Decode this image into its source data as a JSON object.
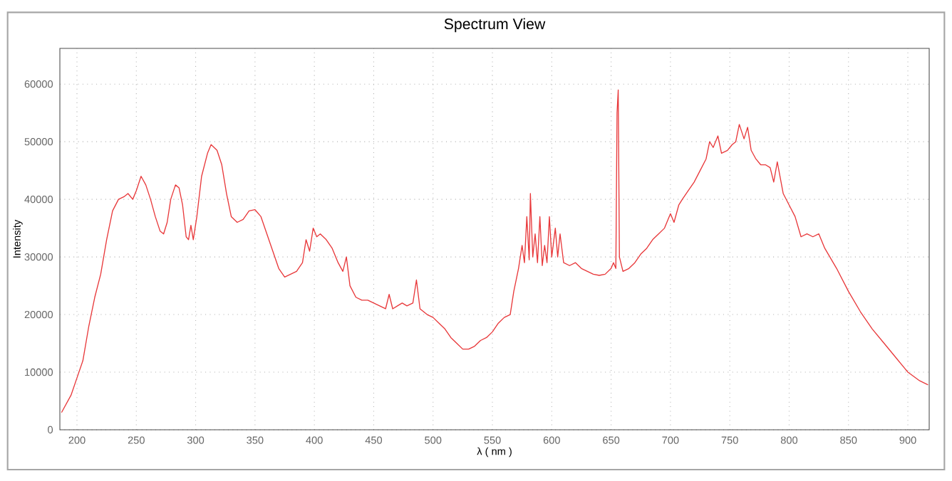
{
  "chart_data": {
    "type": "line",
    "title": "Spectrum View",
    "xlabel": "λ ( nm )",
    "ylabel": "Intensity",
    "xlim": [
      185.6,
      918
    ],
    "ylim": [
      0,
      66200
    ],
    "xticks": [
      200,
      250,
      300,
      350,
      400,
      450,
      500,
      550,
      600,
      650,
      700,
      750,
      800,
      850,
      900
    ],
    "yticks": [
      0,
      10000,
      20000,
      30000,
      40000,
      50000,
      60000
    ],
    "grid": true,
    "marker": "none",
    "line_style": "solid",
    "series": [
      {
        "color": "#e8383a",
        "x": [
          187,
          195,
          200,
          205,
          210,
          215,
          220,
          225,
          230,
          235,
          240,
          243,
          247,
          250,
          254,
          258,
          262,
          266,
          270,
          273,
          276,
          279,
          283,
          286,
          289,
          292,
          294,
          296,
          298,
          301,
          305,
          310,
          313,
          318,
          322,
          326,
          330,
          335,
          340,
          345,
          350,
          355,
          360,
          365,
          370,
          375,
          380,
          385,
          390,
          393,
          396,
          399,
          402,
          405,
          410,
          415,
          420,
          424,
          427,
          430,
          435,
          440,
          445,
          450,
          455,
          460,
          463,
          466,
          470,
          474,
          478,
          483,
          486,
          489,
          495,
          500,
          505,
          510,
          515,
          520,
          525,
          530,
          535,
          540,
          545,
          550,
          555,
          560,
          565,
          568,
          572,
          575,
          577,
          579,
          581,
          582,
          584,
          586,
          588,
          590,
          592,
          594,
          596,
          598,
          600,
          603,
          605,
          607,
          610,
          615,
          620,
          625,
          630,
          635,
          640,
          645,
          650,
          652,
          654,
          655,
          656,
          657,
          660,
          665,
          670,
          675,
          680,
          685,
          690,
          695,
          700,
          703,
          707,
          710,
          715,
          720,
          725,
          730,
          733,
          736,
          740,
          743,
          748,
          752,
          755,
          758,
          762,
          765,
          768,
          772,
          776,
          780,
          784,
          787,
          790,
          795,
          800,
          805,
          810,
          815,
          820,
          825,
          830,
          840,
          850,
          860,
          870,
          880,
          890,
          900,
          910,
          917
        ],
        "values": [
          3000,
          6000,
          9000,
          12000,
          18000,
          23000,
          27000,
          33000,
          38000,
          40000,
          40500,
          41000,
          40000,
          41500,
          44000,
          42500,
          40000,
          37000,
          34500,
          34000,
          36000,
          40000,
          42500,
          42000,
          39000,
          33500,
          33000,
          35500,
          33000,
          37000,
          44000,
          48000,
          49500,
          48500,
          46000,
          41000,
          37000,
          36000,
          36500,
          38000,
          38200,
          37000,
          34000,
          31000,
          28000,
          26500,
          27000,
          27500,
          29000,
          33000,
          31000,
          35000,
          33500,
          34000,
          33000,
          31500,
          29000,
          27500,
          30000,
          25000,
          23000,
          22500,
          22500,
          22000,
          21500,
          21000,
          23500,
          21000,
          21500,
          22000,
          21500,
          22000,
          26000,
          21000,
          20000,
          19500,
          18500,
          17500,
          16000,
          15000,
          14000,
          14000,
          14500,
          15500,
          16000,
          17000,
          18500,
          19500,
          20000,
          24000,
          28000,
          32000,
          29000,
          37000,
          29500,
          41000,
          30000,
          34000,
          29000,
          37000,
          28500,
          32000,
          29000,
          37000,
          30000,
          35000,
          30000,
          34000,
          29000,
          28500,
          29000,
          28000,
          27500,
          27000,
          26800,
          27000,
          28000,
          29000,
          28000,
          55000,
          59000,
          30000,
          27500,
          28000,
          29000,
          30500,
          31500,
          33000,
          34000,
          35000,
          37500,
          36000,
          39000,
          40000,
          41500,
          43000,
          45000,
          47000,
          50000,
          49000,
          51000,
          48000,
          48500,
          49500,
          50000,
          53000,
          50500,
          52500,
          48500,
          47000,
          46000,
          46000,
          45500,
          43000,
          46500,
          41000,
          39000,
          37000,
          33500,
          34000,
          33500,
          34000,
          31500,
          28000,
          24000,
          20500,
          17500,
          15000,
          12500,
          10000,
          8500,
          7800
        ]
      }
    ]
  }
}
